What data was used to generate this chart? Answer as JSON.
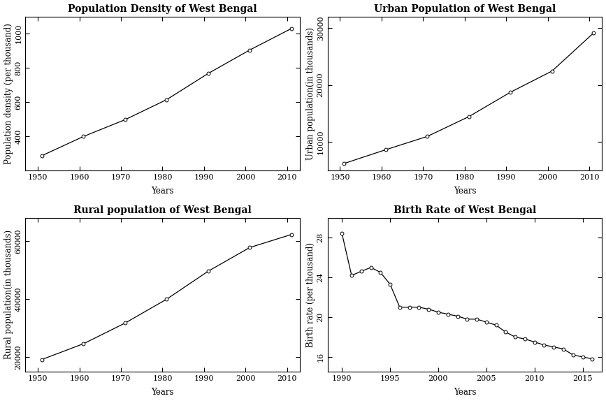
{
  "pd_years": [
    1951,
    1961,
    1971,
    1981,
    1991,
    2001,
    2011
  ],
  "pd_values": [
    287,
    399,
    497,
    614,
    767,
    904,
    1029
  ],
  "pd_title": "Population Density of West Bengal",
  "pd_xlabel": "Years",
  "pd_ylabel": "Population density (per thousand)",
  "pd_ylim": [
    200,
    1100
  ],
  "pd_yticks": [
    400,
    600,
    800,
    1000
  ],
  "pd_xticks": [
    1950,
    1960,
    1970,
    1980,
    1990,
    2000,
    2010
  ],
  "pd_xlim": [
    1947,
    2013
  ],
  "up_years": [
    1951,
    1961,
    1971,
    1981,
    1991,
    2001,
    2011
  ],
  "up_values": [
    6240,
    8651,
    10978,
    14447,
    18717,
    22427,
    29093
  ],
  "up_title": "Urban Population of West Bengal",
  "up_xlabel": "Years",
  "up_ylabel": "Urban population(in thousands)",
  "up_ylim": [
    5000,
    32000
  ],
  "up_yticks": [
    10000,
    20000,
    30000
  ],
  "up_xticks": [
    1950,
    1960,
    1970,
    1980,
    1990,
    2000,
    2010
  ],
  "up_xlim": [
    1947,
    2013
  ],
  "rp_years": [
    1951,
    1961,
    1971,
    1981,
    1991,
    2001,
    2011
  ],
  "rp_values": [
    19250,
    24661,
    31764,
    39974,
    49600,
    57745,
    62214
  ],
  "rp_title": "Rural population of West Bengal",
  "rp_xlabel": "Years",
  "rp_ylabel": "Rural population(in thousands)",
  "rp_ylim": [
    15000,
    68000
  ],
  "rp_yticks": [
    20000,
    40000,
    60000
  ],
  "rp_xticks": [
    1950,
    1960,
    1970,
    1980,
    1990,
    2000,
    2010
  ],
  "rp_xlim": [
    1947,
    2013
  ],
  "br_years": [
    1990,
    1991,
    1992,
    1993,
    1994,
    1995,
    1996,
    1997,
    1998,
    1999,
    2000,
    2001,
    2002,
    2003,
    2004,
    2005,
    2006,
    2007,
    2008,
    2009,
    2010,
    2011,
    2012,
    2013,
    2014,
    2015,
    2016
  ],
  "br_values": [
    28.4,
    24.2,
    24.6,
    25.0,
    24.5,
    23.3,
    21.0,
    21.0,
    21.0,
    20.8,
    20.5,
    20.3,
    20.1,
    19.8,
    19.8,
    19.5,
    19.2,
    18.5,
    18.0,
    17.8,
    17.5,
    17.2,
    17.0,
    16.8,
    16.2,
    16.0,
    15.8
  ],
  "br_title": "Birth Rate of West Bengal",
  "br_xlabel": "Years",
  "br_ylabel": "Birth rate (per thousand)",
  "br_ylim": [
    14.5,
    30
  ],
  "br_yticks": [
    16,
    20,
    24,
    28
  ],
  "br_xticks": [
    1990,
    1995,
    2000,
    2005,
    2010,
    2015
  ],
  "br_xlim": [
    1988.5,
    2017
  ],
  "line_color": "#000000",
  "marker": "o",
  "marker_facecolor": "white",
  "marker_edgecolor": "black",
  "marker_size": 3.5,
  "linewidth": 0.9,
  "title_fontsize": 10,
  "label_fontsize": 8.5,
  "tick_fontsize": 8,
  "bg_color": "#ffffff",
  "title_fontweight": "bold",
  "font_family": "DejaVu Serif"
}
